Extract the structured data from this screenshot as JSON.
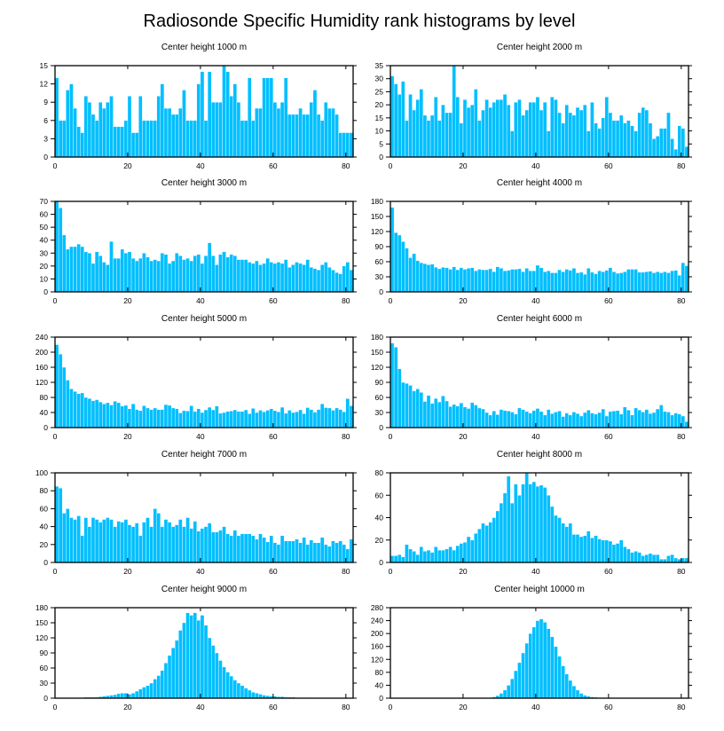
{
  "figure_title": "Radiosonde Specific Humidity rank histograms by level",
  "colors": {
    "bar": "#00BFFF",
    "axis": "#000000",
    "background": "#ffffff"
  },
  "chart_data": [
    {
      "type": "bar",
      "title": "Center height 1000 m",
      "xlim": [
        0,
        82
      ],
      "xticks": [
        0,
        20,
        40,
        60,
        80
      ],
      "ylim": [
        0,
        15
      ],
      "yticks": [
        0,
        3,
        6,
        9,
        12,
        15
      ],
      "values": [
        13,
        6,
        6,
        11,
        12,
        8,
        5,
        4,
        10,
        9,
        7,
        6,
        9,
        8,
        9,
        10,
        5,
        5,
        5,
        6,
        10,
        4,
        4,
        10,
        6,
        6,
        6,
        6,
        10,
        12,
        8,
        8,
        7,
        7,
        8,
        11,
        6,
        6,
        6,
        12,
        14,
        6,
        14,
        9,
        9,
        9,
        15,
        14,
        10,
        12,
        9,
        6,
        6,
        13,
        6,
        8,
        8,
        13,
        13,
        13,
        9,
        8,
        9,
        13,
        7,
        7,
        7,
        8,
        7,
        7,
        9,
        11,
        7,
        6,
        9,
        8,
        8,
        7,
        4,
        4,
        4,
        4
      ],
      "xlabel": "",
      "ylabel": ""
    },
    {
      "type": "bar",
      "title": "Center height 2000 m",
      "xlim": [
        0,
        82
      ],
      "xticks": [
        0,
        20,
        40,
        60,
        80
      ],
      "ylim": [
        0,
        35
      ],
      "yticks": [
        0,
        5,
        10,
        15,
        20,
        25,
        30,
        35
      ],
      "values": [
        31,
        28,
        24,
        29,
        14,
        24,
        18,
        22,
        26,
        16,
        14,
        16,
        23,
        14,
        20,
        17,
        17,
        35,
        23,
        13,
        22,
        19,
        20,
        26,
        14,
        18,
        22,
        19,
        21,
        22,
        22,
        24,
        20,
        10,
        21,
        22,
        16,
        18,
        21,
        21,
        23,
        18,
        21,
        10,
        23,
        22,
        17,
        13,
        20,
        17,
        16,
        19,
        18,
        20,
        10,
        21,
        13,
        11,
        15,
        23,
        17,
        14,
        14,
        16,
        13,
        14,
        12,
        10,
        17,
        19,
        18,
        13,
        7,
        8,
        11,
        11,
        17,
        7,
        3,
        12,
        11,
        4
      ],
      "xlabel": "",
      "ylabel": ""
    },
    {
      "type": "bar",
      "title": "Center height 3000 m",
      "xlim": [
        0,
        82
      ],
      "xticks": [
        0,
        20,
        40,
        60,
        80
      ],
      "ylim": [
        0,
        70
      ],
      "yticks": [
        0,
        10,
        20,
        30,
        40,
        50,
        60,
        70
      ],
      "values": [
        70,
        65,
        44,
        33,
        35,
        35,
        37,
        35,
        31,
        30,
        22,
        31,
        28,
        23,
        21,
        39,
        26,
        26,
        33,
        30,
        31,
        26,
        24,
        26,
        30,
        27,
        24,
        25,
        24,
        30,
        29,
        22,
        24,
        30,
        28,
        25,
        26,
        24,
        28,
        29,
        22,
        28,
        38,
        28,
        21,
        29,
        31,
        27,
        29,
        28,
        25,
        25,
        25,
        23,
        22,
        24,
        21,
        22,
        26,
        23,
        22,
        23,
        22,
        25,
        19,
        21,
        23,
        22,
        21,
        25,
        19,
        18,
        17,
        21,
        23,
        19,
        17,
        15,
        14,
        20,
        23,
        17
      ],
      "xlabel": "",
      "ylabel": ""
    },
    {
      "type": "bar",
      "title": "Center height 4000 m",
      "xlim": [
        0,
        82
      ],
      "xticks": [
        0,
        20,
        40,
        60,
        80
      ],
      "ylim": [
        0,
        180
      ],
      "yticks": [
        0,
        30,
        60,
        90,
        120,
        150,
        180
      ],
      "values": [
        168,
        118,
        113,
        100,
        87,
        68,
        76,
        62,
        58,
        56,
        54,
        55,
        49,
        46,
        49,
        48,
        45,
        50,
        44,
        48,
        45,
        47,
        48,
        42,
        45,
        44,
        44,
        46,
        40,
        50,
        47,
        42,
        43,
        45,
        45,
        46,
        40,
        47,
        42,
        42,
        53,
        48,
        40,
        42,
        38,
        38,
        44,
        40,
        45,
        43,
        47,
        38,
        39,
        35,
        47,
        39,
        36,
        42,
        40,
        43,
        48,
        40,
        37,
        38,
        40,
        45,
        45,
        45,
        39,
        39,
        40,
        41,
        38,
        40,
        38,
        40,
        38,
        42,
        43,
        33,
        58,
        52
      ],
      "xlabel": "",
      "ylabel": ""
    },
    {
      "type": "bar",
      "title": "Center height 5000 m",
      "xlim": [
        0,
        82
      ],
      "xticks": [
        0,
        20,
        40,
        60,
        80
      ],
      "ylim": [
        0,
        240
      ],
      "yticks": [
        0,
        40,
        80,
        120,
        160,
        200,
        240
      ],
      "values": [
        220,
        195,
        160,
        126,
        103,
        96,
        90,
        92,
        80,
        77,
        71,
        74,
        68,
        63,
        66,
        60,
        70,
        66,
        57,
        59,
        50,
        63,
        48,
        45,
        58,
        52,
        48,
        52,
        48,
        48,
        61,
        59,
        52,
        50,
        39,
        45,
        44,
        58,
        43,
        50,
        40,
        47,
        54,
        47,
        57,
        38,
        40,
        43,
        44,
        47,
        43,
        43,
        47,
        37,
        51,
        40,
        46,
        42,
        46,
        50,
        45,
        42,
        54,
        38,
        46,
        40,
        42,
        47,
        37,
        53,
        48,
        41,
        48,
        63,
        53,
        52,
        46,
        52,
        48,
        42,
        77,
        58
      ],
      "xlabel": "",
      "ylabel": ""
    },
    {
      "type": "bar",
      "title": "Center height 6000 m",
      "xlim": [
        0,
        82
      ],
      "xticks": [
        0,
        20,
        40,
        60,
        80
      ],
      "ylim": [
        0,
        180
      ],
      "yticks": [
        0,
        30,
        60,
        90,
        120,
        150,
        180
      ],
      "values": [
        168,
        160,
        117,
        90,
        88,
        84,
        73,
        77,
        70,
        52,
        64,
        48,
        58,
        51,
        63,
        53,
        42,
        46,
        43,
        49,
        41,
        38,
        50,
        45,
        39,
        37,
        30,
        25,
        33,
        26,
        36,
        34,
        33,
        31,
        27,
        39,
        36,
        32,
        29,
        34,
        38,
        32,
        25,
        36,
        28,
        31,
        33,
        22,
        29,
        25,
        31,
        28,
        23,
        30,
        35,
        29,
        27,
        30,
        37,
        23,
        32,
        33,
        34,
        27,
        41,
        35,
        25,
        39,
        35,
        31,
        36,
        28,
        30,
        37,
        45,
        32,
        31,
        25,
        29,
        27,
        23,
        12
      ],
      "xlabel": "",
      "ylabel": ""
    },
    {
      "type": "bar",
      "title": "Center height 7000 m",
      "xlim": [
        0,
        82
      ],
      "xticks": [
        0,
        20,
        40,
        60,
        80
      ],
      "ylim": [
        0,
        100
      ],
      "yticks": [
        0,
        20,
        40,
        60,
        80,
        100
      ],
      "values": [
        85,
        83,
        55,
        60,
        50,
        48,
        52,
        30,
        50,
        40,
        50,
        48,
        45,
        48,
        50,
        48,
        40,
        46,
        45,
        48,
        42,
        40,
        44,
        30,
        45,
        50,
        40,
        60,
        55,
        40,
        48,
        45,
        40,
        42,
        48,
        40,
        50,
        38,
        46,
        35,
        38,
        40,
        44,
        34,
        34,
        36,
        40,
        32,
        30,
        36,
        30,
        32,
        32,
        32,
        30,
        26,
        32,
        28,
        23,
        30,
        22,
        20,
        30,
        24,
        24,
        24,
        26,
        22,
        28,
        20,
        25,
        22,
        22,
        28,
        20,
        18,
        24,
        22,
        24,
        20,
        15,
        26
      ],
      "xlabel": "",
      "ylabel": ""
    },
    {
      "type": "bar",
      "title": "Center height 8000 m",
      "xlim": [
        0,
        82
      ],
      "xticks": [
        0,
        20,
        40,
        60,
        80
      ],
      "ylim": [
        0,
        80
      ],
      "yticks": [
        0,
        20,
        40,
        60,
        80
      ],
      "values": [
        6,
        6,
        7,
        5,
        16,
        12,
        10,
        7,
        14,
        10,
        11,
        9,
        14,
        11,
        11,
        12,
        14,
        11,
        15,
        17,
        18,
        23,
        20,
        26,
        30,
        35,
        33,
        36,
        40,
        46,
        53,
        62,
        77,
        53,
        70,
        60,
        70,
        80,
        70,
        72,
        68,
        69,
        67,
        60,
        50,
        42,
        40,
        35,
        32,
        35,
        25,
        25,
        23,
        24,
        28,
        22,
        24,
        21,
        20,
        20,
        19,
        16,
        17,
        20,
        14,
        12,
        9,
        10,
        9,
        6,
        7,
        8,
        7,
        7,
        3,
        3,
        6,
        7,
        4,
        3,
        4,
        4
      ],
      "xlabel": "",
      "ylabel": ""
    },
    {
      "type": "bar",
      "title": "Center height 9000 m",
      "xlim": [
        0,
        82
      ],
      "xticks": [
        0,
        20,
        40,
        60,
        80
      ],
      "ylim": [
        0,
        180
      ],
      "yticks": [
        0,
        30,
        60,
        90,
        120,
        150,
        180
      ],
      "values": [
        1,
        1,
        1,
        1,
        1,
        1,
        1,
        1,
        2,
        2,
        2,
        2,
        3,
        4,
        5,
        6,
        7,
        9,
        10,
        10,
        8,
        10,
        14,
        18,
        22,
        25,
        30,
        38,
        45,
        55,
        70,
        85,
        100,
        115,
        135,
        150,
        170,
        165,
        170,
        155,
        165,
        145,
        120,
        105,
        90,
        75,
        62,
        52,
        44,
        36,
        30,
        25,
        20,
        16,
        12,
        10,
        8,
        6,
        5,
        4,
        4,
        3,
        3,
        2,
        2,
        2,
        1,
        1,
        1,
        1,
        1,
        0,
        0,
        0,
        0,
        0,
        0,
        0,
        0,
        0,
        0,
        0
      ],
      "xlabel": "",
      "ylabel": ""
    },
    {
      "type": "bar",
      "title": "Center height 10000 m",
      "xlim": [
        0,
        82
      ],
      "xticks": [
        0,
        20,
        40,
        60,
        80
      ],
      "ylim": [
        0,
        280
      ],
      "yticks": [
        0,
        40,
        80,
        120,
        160,
        200,
        240,
        280
      ],
      "values": [
        0,
        0,
        0,
        0,
        0,
        0,
        0,
        0,
        0,
        0,
        0,
        0,
        0,
        0,
        0,
        0,
        0,
        0,
        0,
        0,
        0,
        0,
        0,
        0,
        0,
        0,
        0,
        2,
        4,
        8,
        15,
        25,
        40,
        60,
        85,
        110,
        140,
        170,
        200,
        220,
        240,
        245,
        235,
        215,
        190,
        160,
        130,
        100,
        75,
        55,
        38,
        25,
        15,
        9,
        6,
        4,
        3,
        2,
        2,
        1,
        1,
        1,
        1,
        0,
        0,
        0,
        0,
        0,
        0,
        0,
        0,
        0,
        0,
        0,
        0,
        0,
        0,
        0,
        0,
        0,
        0,
        0
      ],
      "xlabel": "",
      "ylabel": ""
    }
  ]
}
